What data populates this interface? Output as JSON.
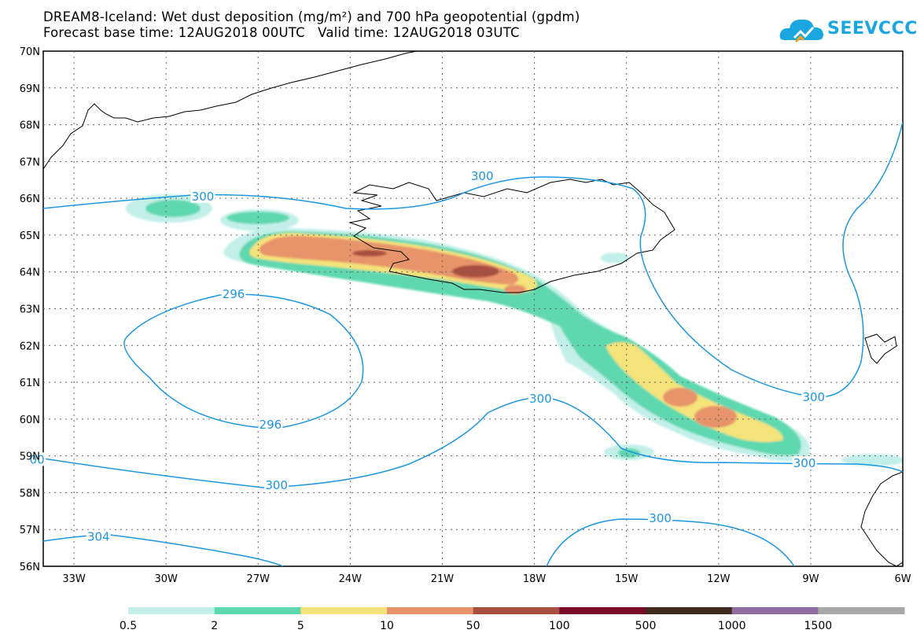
{
  "header": {
    "title_line1": "DREAM8-Iceland: Wet dust deposition (mg/m²) and 700 hPa geopotential (gpdm)",
    "title_line2": "Forecast base time: 12AUG2018 00UTC   Valid time: 12AUG2018 03UTC"
  },
  "logo": {
    "text": "SEEVCCC",
    "icon": "cloud-logo-icon",
    "color": "#1aa6e0"
  },
  "map": {
    "lat_labels": [
      "70N",
      "69N",
      "68N",
      "67N",
      "66N",
      "65N",
      "64N",
      "63N",
      "62N",
      "61N",
      "60N",
      "59N",
      "58N",
      "57N",
      "56N"
    ],
    "lon_labels": [
      "33W",
      "30W",
      "27W",
      "24W",
      "21W",
      "18W",
      "15W",
      "12W",
      "9W",
      "6W"
    ],
    "contour_color": "#1b96e2",
    "contour_labels": [
      {
        "text": "300",
        "lon": -28.8,
        "lat": 66.05
      },
      {
        "text": "300",
        "lon": -19.7,
        "lat": 66.6
      },
      {
        "text": "296",
        "lon": -27.8,
        "lat": 63.4
      },
      {
        "text": "296",
        "lon": -26.6,
        "lat": 59.85
      },
      {
        "text": "300",
        "lon": -17.8,
        "lat": 60.55
      },
      {
        "text": "00",
        "lon": -34.2,
        "lat": 58.9
      },
      {
        "text": "300",
        "lon": -26.4,
        "lat": 58.2
      },
      {
        "text": "300",
        "lon": -8.9,
        "lat": 60.6
      },
      {
        "text": "300",
        "lon": -9.2,
        "lat": 58.8
      },
      {
        "text": "300",
        "lon": -13.9,
        "lat": 57.3
      },
      {
        "text": "304",
        "lon": -32.2,
        "lat": 56.8
      }
    ]
  },
  "legend": {
    "bins": [
      {
        "label": "0.5",
        "color": "#c2f0e8"
      },
      {
        "label": "2",
        "color": "#5ed8b0"
      },
      {
        "label": "5",
        "color": "#f4e27a"
      },
      {
        "label": "10",
        "color": "#e8946a"
      },
      {
        "label": "50",
        "color": "#a8503f"
      },
      {
        "label": "100",
        "color": "#7a0a2a"
      },
      {
        "label": "500",
        "color": "#3f2a1e"
      },
      {
        "label": "1000",
        "color": "#8f6da0"
      },
      {
        "label": "1500",
        "color": "#a8a8a8"
      }
    ]
  }
}
